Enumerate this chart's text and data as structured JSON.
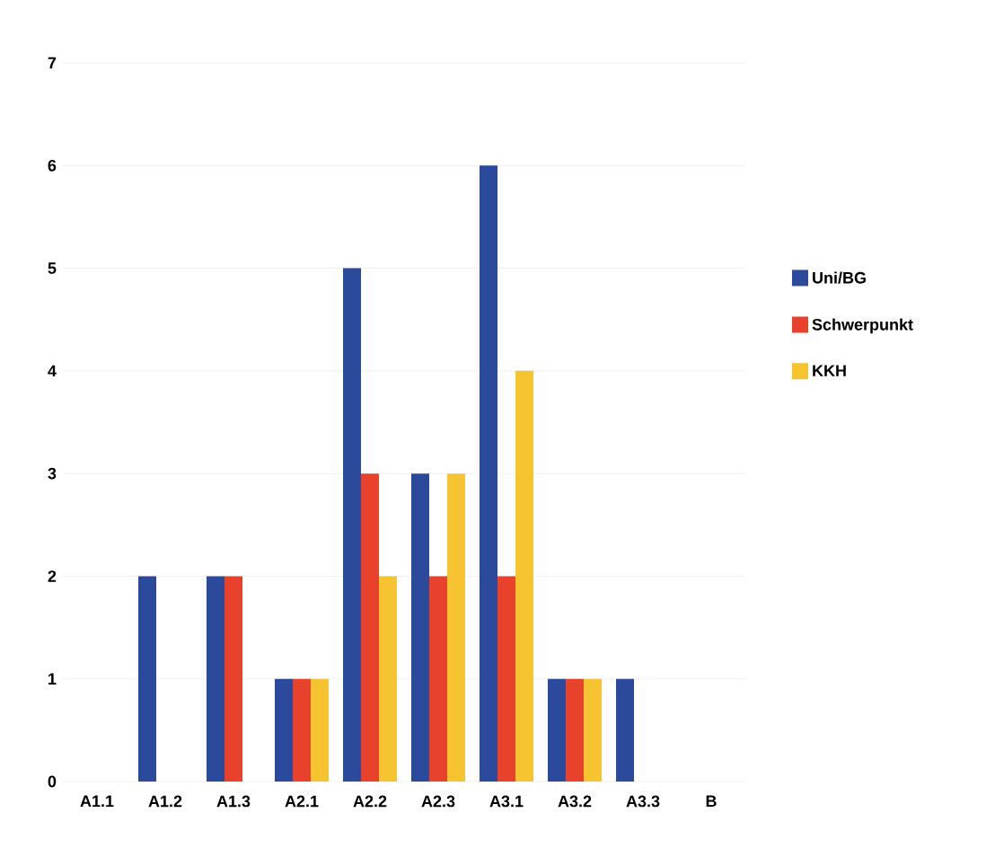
{
  "chart_data": {
    "type": "bar",
    "categories": [
      "A1.1",
      "A1.2",
      "A1.3",
      "A2.1",
      "A2.2",
      "A2.3",
      "A3.1",
      "A3.2",
      "A3.3",
      "B"
    ],
    "series": [
      {
        "name": "Uni/BG",
        "color": "#2b4a9c",
        "values": [
          0,
          2,
          2,
          1,
          5,
          3,
          6,
          1,
          1,
          0
        ]
      },
      {
        "name": "Schwerpunkt",
        "color": "#e8412c",
        "values": [
          0,
          0,
          2,
          1,
          3,
          2,
          2,
          1,
          0,
          0
        ]
      },
      {
        "name": "KKH",
        "color": "#f7c431",
        "values": [
          0,
          0,
          0,
          1,
          2,
          3,
          4,
          1,
          0,
          0
        ]
      }
    ],
    "ylim": [
      0,
      7
    ],
    "yticks": [
      0,
      1,
      2,
      3,
      4,
      5,
      6,
      7
    ],
    "grid": "y",
    "legend": "right"
  }
}
